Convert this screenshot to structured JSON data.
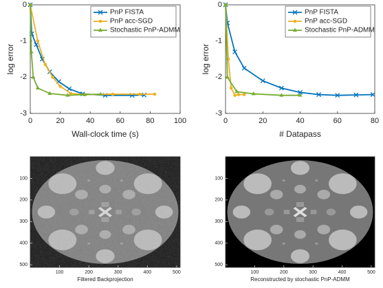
{
  "chart_data": [
    {
      "type": "line",
      "xlabel": "Wall-clock time (s)",
      "ylabel": "log error",
      "xlim": [
        0,
        100
      ],
      "xticks": [
        0,
        20,
        40,
        60,
        80,
        100
      ],
      "ylim": [
        -3,
        0
      ],
      "yticks": [
        -3,
        -2,
        -1,
        0
      ],
      "legend": "top-right",
      "series": [
        {
          "name": "PnP FISTA",
          "color": "#0072bd",
          "marker": "x",
          "x": [
            0,
            1,
            4,
            8,
            13,
            19,
            26,
            35,
            50,
            68,
            76
          ],
          "values": [
            0,
            -0.8,
            -1.1,
            -1.5,
            -1.85,
            -2.12,
            -2.32,
            -2.46,
            -2.5,
            -2.5,
            -2.49
          ]
        },
        {
          "name": "PnP acc-SGD",
          "color": "#edb120",
          "marker": "o",
          "x": [
            0,
            5,
            10,
            15,
            20,
            27,
            37,
            55,
            73,
            83
          ],
          "values": [
            0,
            -1.0,
            -1.65,
            -2.0,
            -2.25,
            -2.45,
            -2.48,
            -2.47,
            -2.47,
            -2.47
          ]
        },
        {
          "name": "Stochastic PnP-ADMM",
          "color": "#77ac30",
          "marker": "*",
          "x": [
            0,
            0.7,
            2,
            5,
            13,
            25,
            36,
            47
          ],
          "values": [
            0,
            -1.3,
            -2.0,
            -2.3,
            -2.45,
            -2.5,
            -2.48,
            -2.47
          ]
        }
      ]
    },
    {
      "type": "line",
      "xlabel": "# Datapass",
      "ylabel": "log error",
      "xlim": [
        0,
        80
      ],
      "xticks": [
        0,
        20,
        40,
        60,
        80
      ],
      "ylim": [
        -3,
        0
      ],
      "yticks": [
        -3,
        -2,
        -1,
        0
      ],
      "legend": "top-right",
      "series": [
        {
          "name": "PnP FISTA",
          "color": "#0072bd",
          "marker": "x",
          "x": [
            0,
            1,
            5,
            10,
            20,
            30,
            40,
            50,
            60,
            70,
            79
          ],
          "values": [
            0,
            -0.5,
            -1.3,
            -1.75,
            -2.1,
            -2.3,
            -2.42,
            -2.48,
            -2.5,
            -2.49,
            -2.48
          ]
        },
        {
          "name": "PnP acc-SGD",
          "color": "#edb120",
          "marker": "o",
          "x": [
            0,
            1.5,
            3,
            5,
            7,
            10
          ],
          "values": [
            0,
            -1.5,
            -2.3,
            -2.5,
            -2.48,
            -2.48
          ]
        },
        {
          "name": "Stochastic PnP-ADMM",
          "color": "#77ac30",
          "marker": "*",
          "x": [
            0,
            1,
            6,
            15,
            30,
            40
          ],
          "values": [
            0,
            -2.0,
            -2.4,
            -2.46,
            -2.5,
            -2.5
          ]
        }
      ]
    },
    {
      "type": "image",
      "xlabel": "Filtered Backprojection",
      "xlim": [
        0,
        512
      ],
      "xticks": [
        100,
        200,
        300,
        400,
        500
      ],
      "ylim": [
        512,
        0
      ],
      "yticks": [
        100,
        200,
        300,
        400,
        500
      ],
      "noise": true
    },
    {
      "type": "image",
      "xlabel": "Reconstructed by stochastic PnP-ADMM",
      "xlim": [
        0,
        512
      ],
      "xticks": [
        100,
        200,
        300,
        400,
        500
      ],
      "ylim": [
        512,
        0
      ],
      "yticks": [
        100,
        200,
        300,
        400,
        500
      ],
      "noise": false
    }
  ]
}
